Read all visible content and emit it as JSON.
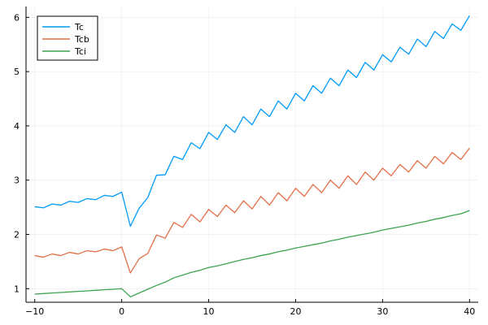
{
  "chart_data": {
    "type": "line",
    "title": "",
    "xlabel": "",
    "ylabel": "",
    "xlim": [
      -11,
      41
    ],
    "ylim": [
      0.75,
      6.2
    ],
    "x_ticks": [
      -10,
      0,
      10,
      20,
      30,
      40
    ],
    "y_ticks": [
      1,
      2,
      3,
      4,
      5,
      6
    ],
    "grid": true,
    "legend_position": "top-left",
    "x": [
      -10,
      -9,
      -8,
      -7,
      -6,
      -5,
      -4,
      -3,
      -2,
      -1,
      0,
      1,
      2,
      3,
      4,
      5,
      6,
      7,
      8,
      9,
      10,
      11,
      12,
      13,
      14,
      15,
      16,
      17,
      18,
      19,
      20,
      21,
      22,
      23,
      24,
      25,
      26,
      27,
      28,
      29,
      30,
      31,
      32,
      33,
      34,
      35,
      36,
      37,
      38,
      39,
      40
    ],
    "series": [
      {
        "name": "Tc",
        "color": "#009AFA",
        "values": [
          2.51,
          2.49,
          2.56,
          2.54,
          2.61,
          2.59,
          2.66,
          2.64,
          2.72,
          2.7,
          2.78,
          2.15,
          2.48,
          2.68,
          3.09,
          3.1,
          3.44,
          3.38,
          3.69,
          3.58,
          3.88,
          3.75,
          4.02,
          3.88,
          4.17,
          4.02,
          4.31,
          4.17,
          4.46,
          4.31,
          4.6,
          4.46,
          4.74,
          4.6,
          4.88,
          4.74,
          5.03,
          4.89,
          5.17,
          5.03,
          5.31,
          5.18,
          5.45,
          5.32,
          5.6,
          5.46,
          5.74,
          5.61,
          5.88,
          5.76,
          6.03
        ]
      },
      {
        "name": "Tcb",
        "color": "#E36F47",
        "values": [
          1.61,
          1.58,
          1.64,
          1.61,
          1.67,
          1.64,
          1.7,
          1.68,
          1.73,
          1.7,
          1.77,
          1.29,
          1.55,
          1.65,
          1.99,
          1.93,
          2.22,
          2.13,
          2.37,
          2.23,
          2.46,
          2.33,
          2.54,
          2.4,
          2.62,
          2.47,
          2.7,
          2.54,
          2.77,
          2.62,
          2.85,
          2.7,
          2.92,
          2.77,
          3.0,
          2.85,
          3.08,
          2.92,
          3.15,
          3.0,
          3.22,
          3.08,
          3.29,
          3.15,
          3.36,
          3.22,
          3.44,
          3.3,
          3.51,
          3.38,
          3.59
        ]
      },
      {
        "name": "Tci",
        "color": "#3EA44E",
        "values": [
          0.9,
          0.91,
          0.92,
          0.93,
          0.94,
          0.95,
          0.96,
          0.97,
          0.98,
          0.99,
          1.0,
          0.85,
          0.92,
          0.99,
          1.06,
          1.12,
          1.2,
          1.25,
          1.3,
          1.34,
          1.39,
          1.42,
          1.46,
          1.5,
          1.54,
          1.57,
          1.61,
          1.64,
          1.68,
          1.71,
          1.75,
          1.78,
          1.81,
          1.84,
          1.88,
          1.91,
          1.95,
          1.98,
          2.01,
          2.04,
          2.08,
          2.11,
          2.14,
          2.17,
          2.21,
          2.24,
          2.28,
          2.31,
          2.35,
          2.38,
          2.44
        ]
      }
    ]
  }
}
